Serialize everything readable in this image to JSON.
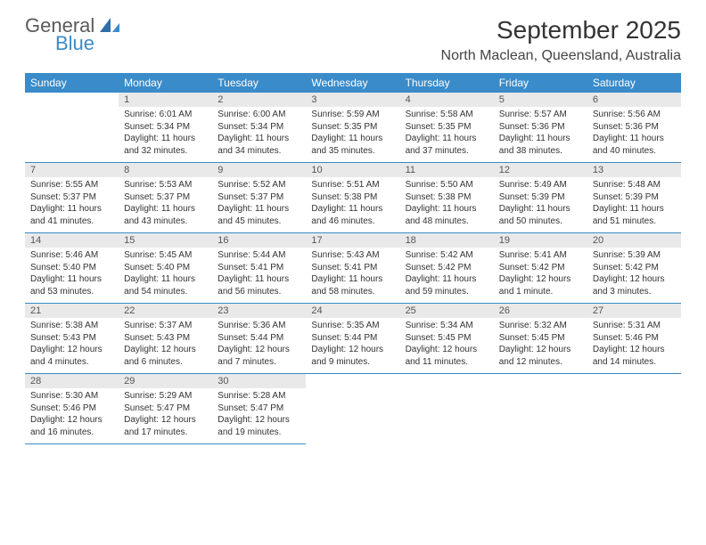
{
  "logo": {
    "word1": "General",
    "word2": "Blue"
  },
  "title": "September 2025",
  "location": "North Maclean, Queensland, Australia",
  "colors": {
    "header_bg": "#3a8bc9",
    "header_text": "#ffffff",
    "daynum_bg": "#e9e9e9",
    "border": "#3a8bc9",
    "logo_gray": "#5a5a5a",
    "logo_blue": "#3a8bc9"
  },
  "weekdays": [
    "Sunday",
    "Monday",
    "Tuesday",
    "Wednesday",
    "Thursday",
    "Friday",
    "Saturday"
  ],
  "weeks": [
    [
      null,
      {
        "n": "1",
        "sr": "6:01 AM",
        "ss": "5:34 PM",
        "dl": "11 hours and 32 minutes."
      },
      {
        "n": "2",
        "sr": "6:00 AM",
        "ss": "5:34 PM",
        "dl": "11 hours and 34 minutes."
      },
      {
        "n": "3",
        "sr": "5:59 AM",
        "ss": "5:35 PM",
        "dl": "11 hours and 35 minutes."
      },
      {
        "n": "4",
        "sr": "5:58 AM",
        "ss": "5:35 PM",
        "dl": "11 hours and 37 minutes."
      },
      {
        "n": "5",
        "sr": "5:57 AM",
        "ss": "5:36 PM",
        "dl": "11 hours and 38 minutes."
      },
      {
        "n": "6",
        "sr": "5:56 AM",
        "ss": "5:36 PM",
        "dl": "11 hours and 40 minutes."
      }
    ],
    [
      {
        "n": "7",
        "sr": "5:55 AM",
        "ss": "5:37 PM",
        "dl": "11 hours and 41 minutes."
      },
      {
        "n": "8",
        "sr": "5:53 AM",
        "ss": "5:37 PM",
        "dl": "11 hours and 43 minutes."
      },
      {
        "n": "9",
        "sr": "5:52 AM",
        "ss": "5:37 PM",
        "dl": "11 hours and 45 minutes."
      },
      {
        "n": "10",
        "sr": "5:51 AM",
        "ss": "5:38 PM",
        "dl": "11 hours and 46 minutes."
      },
      {
        "n": "11",
        "sr": "5:50 AM",
        "ss": "5:38 PM",
        "dl": "11 hours and 48 minutes."
      },
      {
        "n": "12",
        "sr": "5:49 AM",
        "ss": "5:39 PM",
        "dl": "11 hours and 50 minutes."
      },
      {
        "n": "13",
        "sr": "5:48 AM",
        "ss": "5:39 PM",
        "dl": "11 hours and 51 minutes."
      }
    ],
    [
      {
        "n": "14",
        "sr": "5:46 AM",
        "ss": "5:40 PM",
        "dl": "11 hours and 53 minutes."
      },
      {
        "n": "15",
        "sr": "5:45 AM",
        "ss": "5:40 PM",
        "dl": "11 hours and 54 minutes."
      },
      {
        "n": "16",
        "sr": "5:44 AM",
        "ss": "5:41 PM",
        "dl": "11 hours and 56 minutes."
      },
      {
        "n": "17",
        "sr": "5:43 AM",
        "ss": "5:41 PM",
        "dl": "11 hours and 58 minutes."
      },
      {
        "n": "18",
        "sr": "5:42 AM",
        "ss": "5:42 PM",
        "dl": "11 hours and 59 minutes."
      },
      {
        "n": "19",
        "sr": "5:41 AM",
        "ss": "5:42 PM",
        "dl": "12 hours and 1 minute."
      },
      {
        "n": "20",
        "sr": "5:39 AM",
        "ss": "5:42 PM",
        "dl": "12 hours and 3 minutes."
      }
    ],
    [
      {
        "n": "21",
        "sr": "5:38 AM",
        "ss": "5:43 PM",
        "dl": "12 hours and 4 minutes."
      },
      {
        "n": "22",
        "sr": "5:37 AM",
        "ss": "5:43 PM",
        "dl": "12 hours and 6 minutes."
      },
      {
        "n": "23",
        "sr": "5:36 AM",
        "ss": "5:44 PM",
        "dl": "12 hours and 7 minutes."
      },
      {
        "n": "24",
        "sr": "5:35 AM",
        "ss": "5:44 PM",
        "dl": "12 hours and 9 minutes."
      },
      {
        "n": "25",
        "sr": "5:34 AM",
        "ss": "5:45 PM",
        "dl": "12 hours and 11 minutes."
      },
      {
        "n": "26",
        "sr": "5:32 AM",
        "ss": "5:45 PM",
        "dl": "12 hours and 12 minutes."
      },
      {
        "n": "27",
        "sr": "5:31 AM",
        "ss": "5:46 PM",
        "dl": "12 hours and 14 minutes."
      }
    ],
    [
      {
        "n": "28",
        "sr": "5:30 AM",
        "ss": "5:46 PM",
        "dl": "12 hours and 16 minutes."
      },
      {
        "n": "29",
        "sr": "5:29 AM",
        "ss": "5:47 PM",
        "dl": "12 hours and 17 minutes."
      },
      {
        "n": "30",
        "sr": "5:28 AM",
        "ss": "5:47 PM",
        "dl": "12 hours and 19 minutes."
      },
      null,
      null,
      null,
      null
    ]
  ],
  "labels": {
    "sunrise": "Sunrise:",
    "sunset": "Sunset:",
    "daylight": "Daylight:"
  }
}
